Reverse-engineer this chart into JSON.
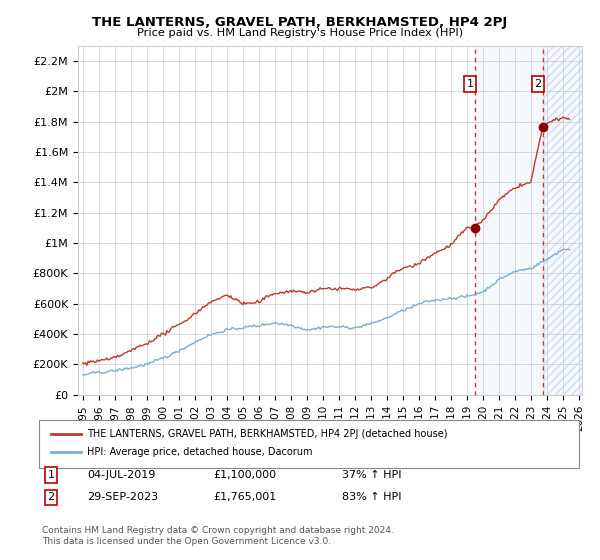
{
  "title": "THE LANTERNS, GRAVEL PATH, BERKHAMSTED, HP4 2PJ",
  "subtitle": "Price paid vs. HM Land Registry's House Price Index (HPI)",
  "ylim": [
    0,
    2300000
  ],
  "yticks": [
    0,
    200000,
    400000,
    600000,
    800000,
    1000000,
    1200000,
    1400000,
    1600000,
    1800000,
    2000000,
    2200000
  ],
  "ytick_labels": [
    "£0",
    "£200K",
    "£400K",
    "£600K",
    "£800K",
    "£1M",
    "£1.2M",
    "£1.4M",
    "£1.6M",
    "£1.8M",
    "£2M",
    "£2.2M"
  ],
  "hpi_color": "#7bafd4",
  "price_color": "#c0392b",
  "marker1_date": 2019.5,
  "marker1_price": 1100000,
  "marker2_date": 2023.75,
  "marker2_price": 1765001,
  "annotation1": "04-JUL-2019",
  "annotation1_price": "£1,100,000",
  "annotation1_hpi": "37% ↑ HPI",
  "annotation2": "29-SEP-2023",
  "annotation2_price": "£1,765,001",
  "annotation2_hpi": "83% ↑ HPI",
  "legend_label1": "THE LANTERNS, GRAVEL PATH, BERKHAMSTED, HP4 2PJ (detached house)",
  "legend_label2": "HPI: Average price, detached house, Dacorum",
  "footer": "Contains HM Land Registry data © Crown copyright and database right 2024.\nThis data is licensed under the Open Government Licence v3.0.",
  "shaded_region_start": 2019.5,
  "shaded_region_end": 2023.75,
  "hatch_start": 2023.75,
  "hatch_end": 2026.2,
  "xmin": 1994.7,
  "xmax": 2026.2,
  "xtick_start": 1995,
  "xtick_end": 2026
}
